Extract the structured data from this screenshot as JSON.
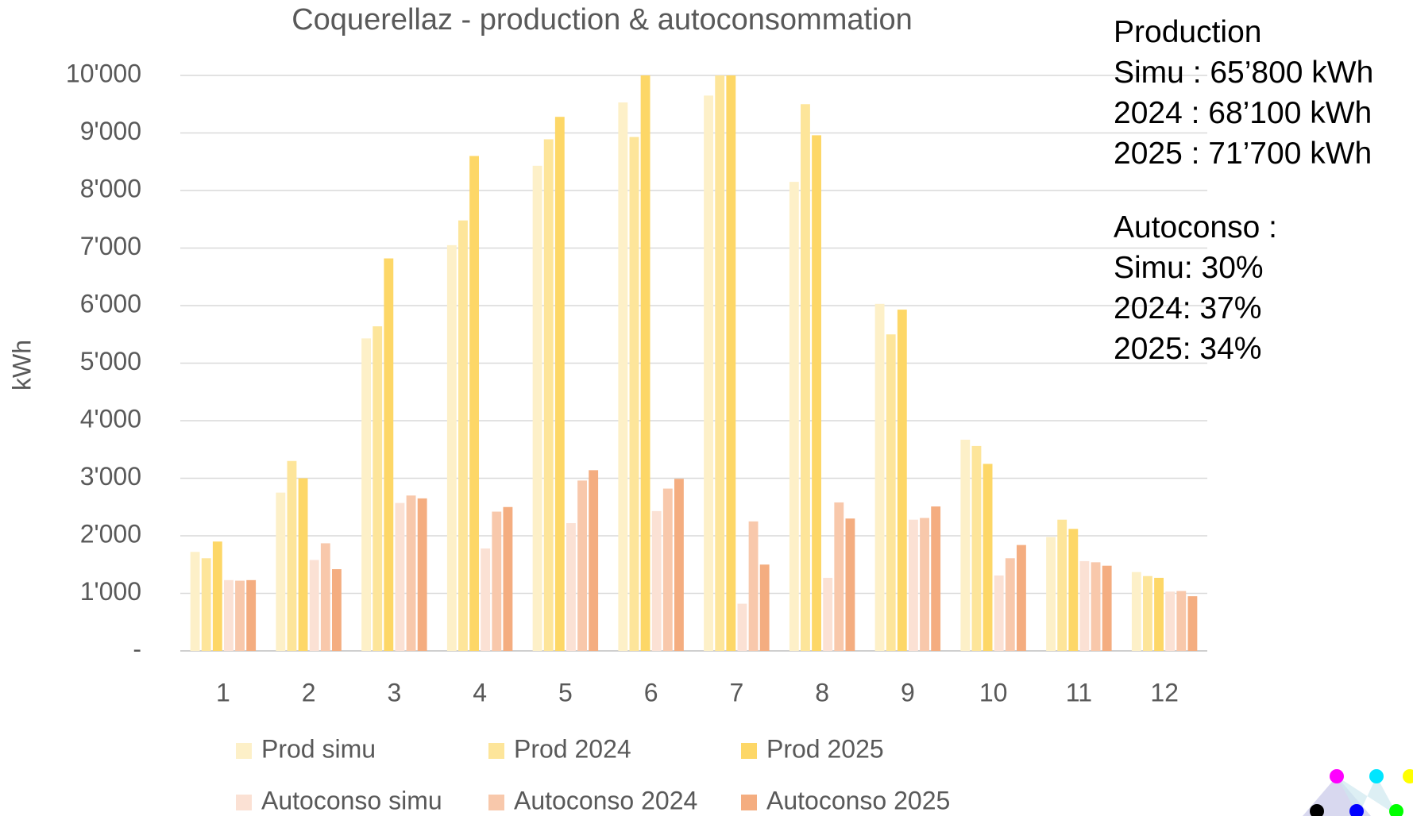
{
  "chart_data": {
    "type": "bar",
    "title": "Coquerellaz - production & autoconsommation",
    "y_label": "kWh",
    "categories": [
      "1",
      "2",
      "3",
      "4",
      "5",
      "6",
      "7",
      "8",
      "9",
      "10",
      "11",
      "12"
    ],
    "series": [
      {
        "name": "Prod simu",
        "color": "#fdf0c8",
        "values": [
          1720,
          2750,
          5430,
          7050,
          8430,
          9530,
          9650,
          8150,
          6030,
          3670,
          1980,
          1370
        ]
      },
      {
        "name": "Prod 2024",
        "color": "#fde59a",
        "values": [
          1610,
          3300,
          5640,
          7480,
          8890,
          8930,
          10000,
          9500,
          5500,
          3560,
          2280,
          1300
        ]
      },
      {
        "name": "Prod 2025",
        "color": "#fdd767",
        "values": [
          1900,
          3000,
          6820,
          8600,
          9280,
          10000,
          10000,
          8960,
          5930,
          3250,
          2120,
          1270
        ]
      },
      {
        "name": "Autoconso simu",
        "color": "#fbe1d4",
        "values": [
          1230,
          1580,
          2570,
          1780,
          2220,
          2430,
          820,
          1270,
          2280,
          1310,
          1560,
          1030
        ]
      },
      {
        "name": "Autoconso 2024",
        "color": "#f8c8ab",
        "values": [
          1220,
          1870,
          2700,
          2420,
          2960,
          2820,
          2250,
          2580,
          2310,
          1610,
          1540,
          1040
        ]
      },
      {
        "name": "Autoconso 2025",
        "color": "#f4ad80",
        "values": [
          1230,
          1420,
          2650,
          2500,
          3140,
          2990,
          1500,
          2300,
          2510,
          1840,
          1480,
          950
        ]
      }
    ],
    "ylim": [
      0,
      10000
    ],
    "yticks": [
      {
        "value": 0,
        "label": "-"
      },
      {
        "value": 1000,
        "label": "1'000"
      },
      {
        "value": 2000,
        "label": "2'000"
      },
      {
        "value": 3000,
        "label": "3'000"
      },
      {
        "value": 4000,
        "label": "4'000"
      },
      {
        "value": 5000,
        "label": "5'000"
      },
      {
        "value": 6000,
        "label": "6'000"
      },
      {
        "value": 7000,
        "label": "7'000"
      },
      {
        "value": 8000,
        "label": "8'000"
      },
      {
        "value": 9000,
        "label": "9'000"
      },
      {
        "value": 10000,
        "label": "10'000"
      }
    ],
    "grid": true,
    "notes": [
      {
        "lines": [
          "Production",
          "Simu : 65’800 kWh",
          "2024 : 68’100 kWh",
          "2025 : 71’700 kWh"
        ]
      },
      {
        "lines": [
          "Autoconso :",
          "Simu: 30%",
          "2024: 37%",
          "2025: 34%"
        ]
      }
    ]
  }
}
